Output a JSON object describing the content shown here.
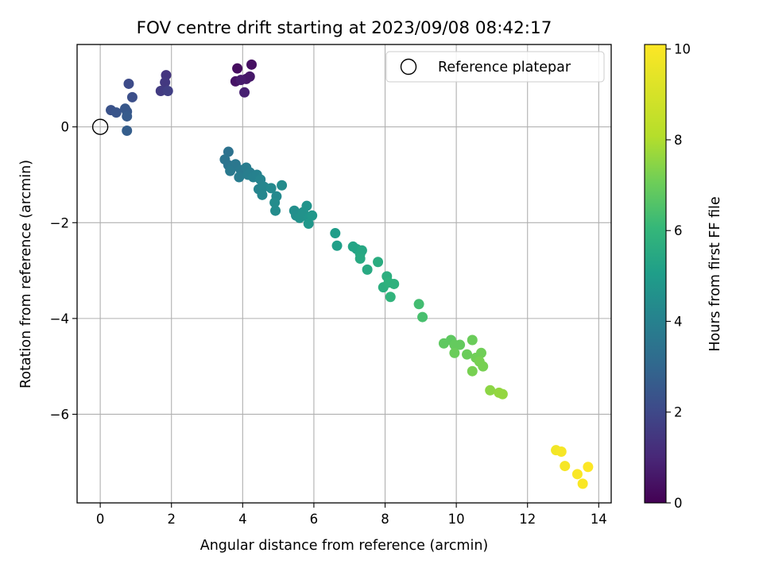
{
  "chart_data": {
    "type": "scatter",
    "title": "FOV centre drift starting at 2023/09/08 08:42:17",
    "xlabel": "Angular distance from reference (arcmin)",
    "ylabel": "Rotation from reference (arcmin)",
    "colorbar_label": "Hours from first FF file",
    "xlim": [
      -0.65,
      14.35
    ],
    "ylim": [
      -7.85,
      1.72
    ],
    "x_ticks": [
      0,
      2,
      4,
      6,
      8,
      10,
      12,
      14
    ],
    "y_ticks": [
      0,
      -2,
      -4,
      -6
    ],
    "colorbar_range": [
      0,
      10.1
    ],
    "colorbar_ticks": [
      0,
      2,
      4,
      6,
      8,
      10
    ],
    "colormap": "viridis",
    "grid": true,
    "legend": {
      "placement": "top-right",
      "entries": [
        "Reference platepar"
      ]
    },
    "reference_point": {
      "x": 0,
      "y": 0
    },
    "points": [
      {
        "x": 3.85,
        "y": 1.22,
        "t": 0.3
      },
      {
        "x": 4.25,
        "y": 1.3,
        "t": 0.4
      },
      {
        "x": 3.8,
        "y": 0.95,
        "t": 0.5
      },
      {
        "x": 4.1,
        "y": 1.0,
        "t": 0.6
      },
      {
        "x": 4.2,
        "y": 1.05,
        "t": 0.6
      },
      {
        "x": 3.95,
        "y": 0.98,
        "t": 0.7
      },
      {
        "x": 4.05,
        "y": 0.72,
        "t": 0.8
      },
      {
        "x": 1.85,
        "y": 1.08,
        "t": 1.4
      },
      {
        "x": 1.82,
        "y": 0.93,
        "t": 1.5
      },
      {
        "x": 1.7,
        "y": 0.75,
        "t": 1.6
      },
      {
        "x": 1.9,
        "y": 0.75,
        "t": 1.7
      },
      {
        "x": 0.8,
        "y": 0.9,
        "t": 2.1
      },
      {
        "x": 0.9,
        "y": 0.62,
        "t": 2.2
      },
      {
        "x": 0.3,
        "y": 0.35,
        "t": 2.3
      },
      {
        "x": 0.45,
        "y": 0.3,
        "t": 2.4
      },
      {
        "x": 0.7,
        "y": 0.38,
        "t": 2.5
      },
      {
        "x": 0.75,
        "y": 0.32,
        "t": 2.5
      },
      {
        "x": 0.75,
        "y": 0.22,
        "t": 2.6
      },
      {
        "x": 0.75,
        "y": -0.08,
        "t": 2.7
      },
      {
        "x": 3.6,
        "y": -0.52,
        "t": 3.4
      },
      {
        "x": 3.5,
        "y": -0.68,
        "t": 3.5
      },
      {
        "x": 3.6,
        "y": -0.8,
        "t": 3.5
      },
      {
        "x": 3.7,
        "y": -0.85,
        "t": 3.6
      },
      {
        "x": 3.8,
        "y": -0.78,
        "t": 3.6
      },
      {
        "x": 3.65,
        "y": -0.92,
        "t": 3.7
      },
      {
        "x": 3.95,
        "y": -0.9,
        "t": 3.7
      },
      {
        "x": 3.9,
        "y": -1.05,
        "t": 3.8
      },
      {
        "x": 4.1,
        "y": -0.85,
        "t": 3.8
      },
      {
        "x": 4.2,
        "y": -0.95,
        "t": 3.9
      },
      {
        "x": 4.15,
        "y": -1.0,
        "t": 3.9
      },
      {
        "x": 4.3,
        "y": -1.05,
        "t": 4.0
      },
      {
        "x": 4.4,
        "y": -1.0,
        "t": 4.0
      },
      {
        "x": 4.5,
        "y": -1.1,
        "t": 4.1
      },
      {
        "x": 4.45,
        "y": -1.3,
        "t": 4.1
      },
      {
        "x": 4.6,
        "y": -1.25,
        "t": 4.2
      },
      {
        "x": 4.55,
        "y": -1.42,
        "t": 4.2
      },
      {
        "x": 4.8,
        "y": -1.28,
        "t": 4.3
      },
      {
        "x": 4.95,
        "y": -1.45,
        "t": 4.3
      },
      {
        "x": 4.9,
        "y": -1.58,
        "t": 4.4
      },
      {
        "x": 4.92,
        "y": -1.75,
        "t": 4.4
      },
      {
        "x": 5.1,
        "y": -1.22,
        "t": 4.4
      },
      {
        "x": 5.45,
        "y": -1.75,
        "t": 4.5
      },
      {
        "x": 5.5,
        "y": -1.85,
        "t": 4.5
      },
      {
        "x": 5.6,
        "y": -1.9,
        "t": 4.6
      },
      {
        "x": 5.7,
        "y": -1.78,
        "t": 4.6
      },
      {
        "x": 5.8,
        "y": -1.65,
        "t": 4.7
      },
      {
        "x": 5.85,
        "y": -1.9,
        "t": 4.7
      },
      {
        "x": 5.85,
        "y": -2.02,
        "t": 4.8
      },
      {
        "x": 5.95,
        "y": -1.85,
        "t": 4.8
      },
      {
        "x": 6.6,
        "y": -2.22,
        "t": 5.0
      },
      {
        "x": 6.65,
        "y": -2.48,
        "t": 5.1
      },
      {
        "x": 7.1,
        "y": -2.5,
        "t": 5.3
      },
      {
        "x": 7.2,
        "y": -2.55,
        "t": 5.3
      },
      {
        "x": 7.3,
        "y": -2.65,
        "t": 5.4
      },
      {
        "x": 7.35,
        "y": -2.58,
        "t": 5.4
      },
      {
        "x": 7.3,
        "y": -2.75,
        "t": 5.5
      },
      {
        "x": 7.5,
        "y": -2.98,
        "t": 5.5
      },
      {
        "x": 7.8,
        "y": -2.82,
        "t": 5.6
      },
      {
        "x": 8.05,
        "y": -3.12,
        "t": 5.7
      },
      {
        "x": 7.95,
        "y": -3.35,
        "t": 5.7
      },
      {
        "x": 8.1,
        "y": -3.25,
        "t": 5.8
      },
      {
        "x": 8.25,
        "y": -3.28,
        "t": 5.8
      },
      {
        "x": 8.15,
        "y": -3.55,
        "t": 5.9
      },
      {
        "x": 8.95,
        "y": -3.7,
        "t": 6.3
      },
      {
        "x": 9.05,
        "y": -3.97,
        "t": 6.4
      },
      {
        "x": 9.65,
        "y": -4.52,
        "t": 6.8
      },
      {
        "x": 9.85,
        "y": -4.45,
        "t": 6.8
      },
      {
        "x": 9.95,
        "y": -4.55,
        "t": 6.9
      },
      {
        "x": 10.1,
        "y": -4.55,
        "t": 6.9
      },
      {
        "x": 9.95,
        "y": -4.72,
        "t": 7.0
      },
      {
        "x": 10.3,
        "y": -4.75,
        "t": 7.0
      },
      {
        "x": 10.45,
        "y": -4.45,
        "t": 7.0
      },
      {
        "x": 10.55,
        "y": -4.82,
        "t": 7.1
      },
      {
        "x": 10.7,
        "y": -4.72,
        "t": 7.1
      },
      {
        "x": 10.65,
        "y": -4.9,
        "t": 7.2
      },
      {
        "x": 10.75,
        "y": -5.0,
        "t": 7.2
      },
      {
        "x": 10.45,
        "y": -5.1,
        "t": 7.2
      },
      {
        "x": 10.95,
        "y": -5.5,
        "t": 7.5
      },
      {
        "x": 11.2,
        "y": -5.55,
        "t": 7.6
      },
      {
        "x": 11.3,
        "y": -5.58,
        "t": 7.6
      },
      {
        "x": 12.8,
        "y": -6.75,
        "t": 9.8
      },
      {
        "x": 12.95,
        "y": -6.78,
        "t": 9.9
      },
      {
        "x": 13.05,
        "y": -7.08,
        "t": 9.9
      },
      {
        "x": 13.4,
        "y": -7.25,
        "t": 10.0
      },
      {
        "x": 13.55,
        "y": -7.45,
        "t": 10.0
      },
      {
        "x": 13.7,
        "y": -7.1,
        "t": 10.1
      }
    ]
  }
}
